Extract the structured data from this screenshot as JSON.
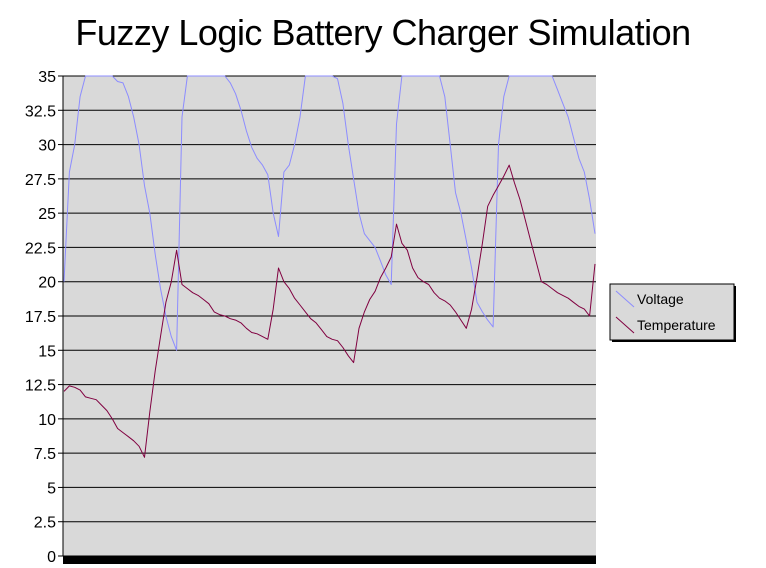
{
  "chart_data": {
    "type": "line",
    "title": "Fuzzy Logic Battery Charger Simulation",
    "xlabel": "",
    "ylabel": "",
    "ylim": [
      0,
      35
    ],
    "yticks": [
      "0",
      "2.5",
      "5",
      "7.5",
      "10",
      "12.5",
      "15",
      "17.5",
      "20",
      "22.5",
      "25",
      "27.5",
      "30",
      "32.5",
      "35"
    ],
    "grid": true,
    "plot_background": "#d9d9d9",
    "legend_position": "right",
    "num_points": 100,
    "series": [
      {
        "name": "Voltage",
        "color": "#8c8cff",
        "values": [
          20.0,
          28.0,
          30.0,
          33.5,
          35.0,
          35.0,
          35.0,
          35.0,
          35.0,
          35.0,
          34.6,
          34.5,
          33.5,
          32.0,
          30.0,
          27.0,
          25.0,
          22.0,
          19.5,
          17.5,
          16.0,
          15.0,
          32.0,
          35.0,
          35.0,
          35.0,
          35.0,
          35.0,
          35.0,
          35.0,
          35.0,
          34.5,
          33.7,
          32.5,
          31.0,
          29.8,
          29.0,
          28.5,
          27.8,
          25.0,
          23.3,
          28.0,
          28.5,
          30.0,
          32.0,
          35.0,
          35.0,
          35.0,
          35.0,
          35.0,
          35.0,
          34.8,
          33.0,
          30.0,
          27.5,
          25.0,
          23.5,
          23.0,
          22.5,
          21.5,
          20.5,
          19.8,
          31.5,
          35.0,
          35.0,
          35.0,
          35.0,
          35.0,
          35.0,
          35.0,
          35.0,
          33.5,
          30.0,
          26.5,
          25.0,
          23.0,
          21.0,
          18.5,
          17.8,
          17.2,
          16.7,
          30.0,
          33.5,
          35.0,
          35.0,
          35.0,
          35.0,
          35.0,
          35.0,
          35.0,
          35.0,
          35.0,
          34.0,
          33.0,
          32.0,
          30.5,
          29.0,
          28.0,
          26.0,
          23.5
        ]
      },
      {
        "name": "Temperature",
        "color": "#800040",
        "values": [
          12.0,
          12.4,
          12.3,
          12.1,
          11.6,
          11.5,
          11.4,
          11.0,
          10.6,
          10.0,
          9.3,
          9.0,
          8.7,
          8.4,
          8.0,
          7.2,
          10.5,
          13.5,
          16.0,
          18.5,
          20.0,
          22.3,
          19.8,
          19.5,
          19.2,
          19.0,
          18.7,
          18.4,
          17.8,
          17.6,
          17.5,
          17.3,
          17.2,
          17.0,
          16.6,
          16.3,
          16.2,
          16.0,
          15.8,
          18.0,
          21.0,
          20.0,
          19.5,
          18.8,
          18.3,
          17.8,
          17.3,
          17.0,
          16.5,
          16.0,
          15.8,
          15.7,
          15.2,
          14.6,
          14.1,
          16.6,
          17.8,
          18.7,
          19.3,
          20.3,
          21.0,
          21.8,
          24.2,
          22.8,
          22.3,
          21.0,
          20.3,
          20.0,
          19.8,
          19.2,
          18.8,
          18.6,
          18.3,
          17.8,
          17.2,
          16.6,
          18.0,
          20.3,
          22.8,
          25.5,
          26.3,
          27.0,
          27.7,
          28.5,
          27.2,
          26.0,
          24.5,
          23.0,
          21.5,
          20.0,
          19.8,
          19.5,
          19.2,
          19.0,
          18.8,
          18.5,
          18.2,
          18.0,
          17.5,
          21.3
        ]
      }
    ]
  }
}
